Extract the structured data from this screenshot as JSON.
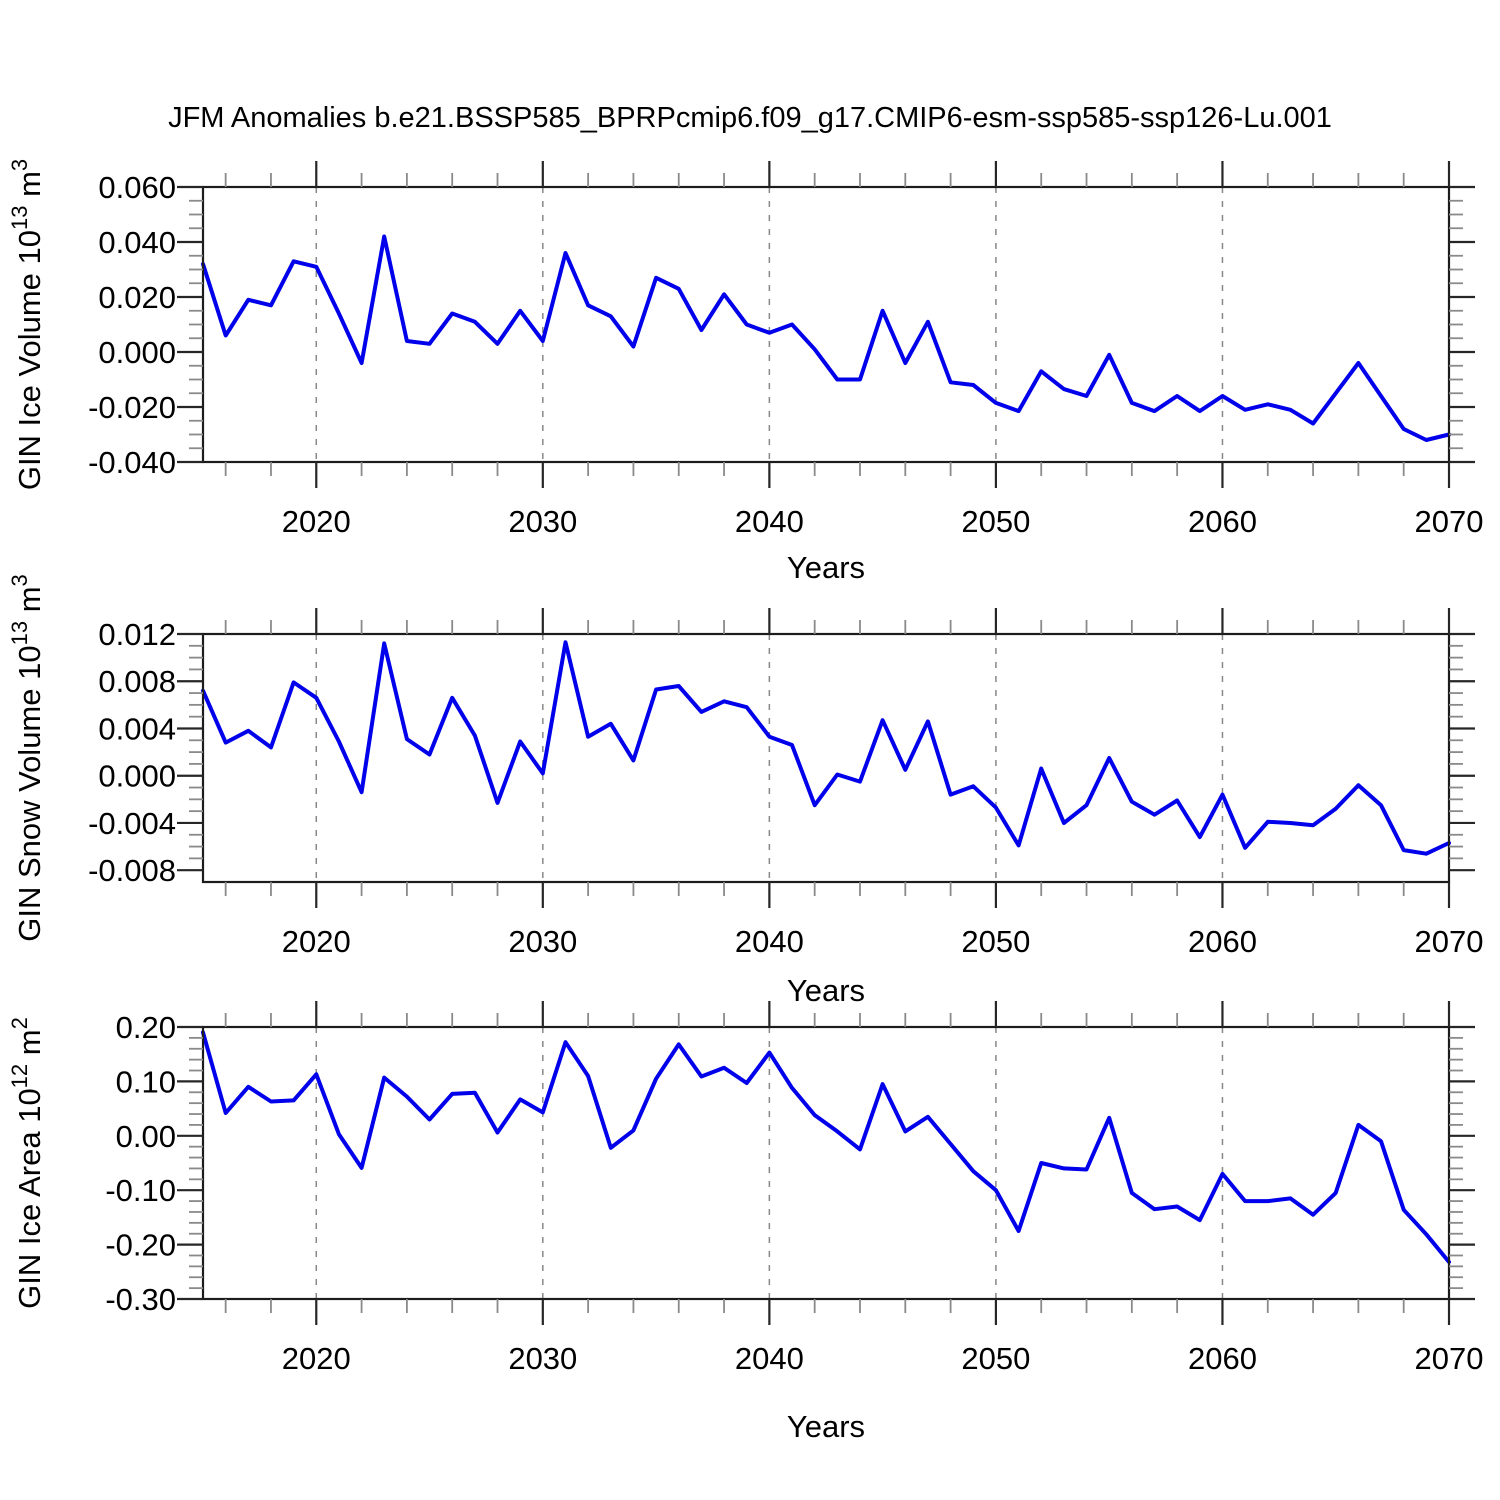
{
  "title": "JFM Anomalies b.e21.BSSP585_BPRPcmip6.f09_g17.CMIP6-esm-ssp585-ssp126-Lu.001",
  "styles": {
    "line_color": "#0000EB",
    "grid_color": "#888888",
    "axis_color": "#1c1c1c",
    "major_tick_color": "#262626",
    "minor_tick_color": "#8a8a8a",
    "background": "#ffffff",
    "text_color": "#000000"
  },
  "chart_data": [
    {
      "type": "line",
      "name": "gin-ice-volume",
      "ylabel_plain": "GIN Ice Volume 10^13 m^3",
      "ylabel_segments": [
        {
          "t": "GIN Ice Volume 10"
        },
        {
          "t": "13",
          "sup": true
        },
        {
          "t": " m"
        },
        {
          "t": "3",
          "sup": true
        }
      ],
      "xlabel": "Years",
      "ylim": [
        -0.04,
        0.06
      ],
      "ytick_labels": [
        "0.060",
        "0.040",
        "0.020",
        "0.000",
        "-0.020",
        "-0.040"
      ],
      "ytick_values": [
        0.06,
        0.04,
        0.02,
        0.0,
        -0.02,
        -0.04
      ],
      "y_minor_step": 0.005,
      "x": [
        2015,
        2016,
        2017,
        2018,
        2019,
        2020,
        2021,
        2022,
        2023,
        2024,
        2025,
        2026,
        2027,
        2028,
        2029,
        2030,
        2031,
        2032,
        2033,
        2034,
        2035,
        2036,
        2037,
        2038,
        2039,
        2040,
        2041,
        2042,
        2043,
        2044,
        2045,
        2046,
        2047,
        2048,
        2049,
        2050,
        2051,
        2052,
        2053,
        2054,
        2055,
        2056,
        2057,
        2058,
        2059,
        2060,
        2061,
        2062,
        2063,
        2064,
        2065,
        2066,
        2067,
        2068,
        2069,
        2070
      ],
      "values": [
        0.032,
        0.006,
        0.019,
        0.017,
        0.033,
        0.031,
        0.014,
        -0.004,
        0.042,
        0.004,
        0.003,
        0.014,
        0.011,
        0.003,
        0.015,
        0.004,
        0.036,
        0.017,
        0.013,
        0.002,
        0.027,
        0.023,
        0.008,
        0.021,
        0.01,
        0.007,
        0.01,
        0.001,
        -0.01,
        -0.01,
        0.015,
        -0.004,
        0.011,
        -0.011,
        -0.012,
        -0.0185,
        -0.0215,
        -0.007,
        -0.0135,
        -0.016,
        -0.001,
        -0.0185,
        -0.0215,
        -0.016,
        -0.0215,
        -0.016,
        -0.021,
        -0.019,
        -0.021,
        -0.026,
        -0.015,
        -0.004,
        -0.016,
        -0.028,
        -0.032,
        -0.03
      ]
    },
    {
      "type": "line",
      "name": "gin-snow-volume",
      "ylabel_plain": "GIN Snow Volume 10^13 m^3",
      "ylabel_segments": [
        {
          "t": "GIN Snow Volume 10"
        },
        {
          "t": "13",
          "sup": true
        },
        {
          "t": " m"
        },
        {
          "t": "3",
          "sup": true
        }
      ],
      "xlabel": "Years",
      "ylim": [
        -0.009,
        0.012
      ],
      "ytick_labels": [
        "0.012",
        "0.008",
        "0.004",
        "0.000",
        "-0.004",
        "-0.008"
      ],
      "ytick_values": [
        0.012,
        0.008,
        0.004,
        0.0,
        -0.004,
        -0.008
      ],
      "y_minor_step": 0.001,
      "x": [
        2015,
        2016,
        2017,
        2018,
        2019,
        2020,
        2021,
        2022,
        2023,
        2024,
        2025,
        2026,
        2027,
        2028,
        2029,
        2030,
        2031,
        2032,
        2033,
        2034,
        2035,
        2036,
        2037,
        2038,
        2039,
        2040,
        2041,
        2042,
        2043,
        2044,
        2045,
        2046,
        2047,
        2048,
        2049,
        2050,
        2051,
        2052,
        2053,
        2054,
        2055,
        2056,
        2057,
        2058,
        2059,
        2060,
        2061,
        2062,
        2063,
        2064,
        2065,
        2066,
        2067,
        2068,
        2069,
        2070
      ],
      "values": [
        0.0072,
        0.0028,
        0.0038,
        0.0024,
        0.0079,
        0.0066,
        0.0029,
        -0.0014,
        0.0112,
        0.0031,
        0.0018,
        0.0066,
        0.0034,
        -0.0023,
        0.0029,
        0.0002,
        0.0113,
        0.0033,
        0.0044,
        0.0013,
        0.0073,
        0.0076,
        0.0054,
        0.0063,
        0.0058,
        0.0033,
        0.0026,
        -0.0025,
        0.0001,
        -0.0005,
        0.0047,
        0.0005,
        0.0046,
        -0.0016,
        -0.0009,
        -0.0027,
        -0.0059,
        0.0006,
        -0.004,
        -0.0025,
        0.0015,
        -0.0022,
        -0.0033,
        -0.0021,
        -0.0052,
        -0.0016,
        -0.0061,
        -0.0039,
        -0.004,
        -0.0042,
        -0.0028,
        -0.0008,
        -0.0025,
        -0.0063,
        -0.0066,
        -0.0057
      ]
    },
    {
      "type": "line",
      "name": "gin-ice-area",
      "ylabel_plain": "GIN Ice Area 10^12 m^2",
      "ylabel_segments": [
        {
          "t": "GIN Ice Area 10"
        },
        {
          "t": "12",
          "sup": true
        },
        {
          "t": " m"
        },
        {
          "t": "2",
          "sup": true
        }
      ],
      "xlabel": "Years",
      "ylim": [
        -0.3,
        0.2
      ],
      "ytick_labels": [
        "0.20",
        "0.10",
        "0.00",
        "-0.10",
        "-0.20",
        "-0.30"
      ],
      "ytick_values": [
        0.2,
        0.1,
        0.0,
        -0.1,
        -0.2,
        -0.3
      ],
      "y_minor_step": 0.02,
      "x": [
        2015,
        2016,
        2017,
        2018,
        2019,
        2020,
        2021,
        2022,
        2023,
        2024,
        2025,
        2026,
        2027,
        2028,
        2029,
        2030,
        2031,
        2032,
        2033,
        2034,
        2035,
        2036,
        2037,
        2038,
        2039,
        2040,
        2041,
        2042,
        2043,
        2044,
        2045,
        2046,
        2047,
        2048,
        2049,
        2050,
        2051,
        2052,
        2053,
        2054,
        2055,
        2056,
        2057,
        2058,
        2059,
        2060,
        2061,
        2062,
        2063,
        2064,
        2065,
        2066,
        2067,
        2068,
        2069,
        2070
      ],
      "values": [
        0.19,
        0.042,
        0.09,
        0.063,
        0.065,
        0.113,
        0.003,
        -0.059,
        0.107,
        0.072,
        0.03,
        0.077,
        0.079,
        0.006,
        0.067,
        0.043,
        0.172,
        0.11,
        -0.022,
        0.01,
        0.105,
        0.168,
        0.109,
        0.125,
        0.097,
        0.153,
        0.088,
        0.038,
        0.008,
        -0.025,
        0.095,
        0.008,
        0.035,
        -0.015,
        -0.065,
        -0.1,
        -0.175,
        -0.05,
        -0.06,
        -0.062,
        0.033,
        -0.105,
        -0.135,
        -0.13,
        -0.155,
        -0.07,
        -0.12,
        -0.12,
        -0.115,
        -0.145,
        -0.105,
        0.02,
        -0.01,
        -0.136,
        -0.181,
        -0.232
      ]
    }
  ],
  "x_axis": {
    "xlim": [
      2015,
      2070
    ],
    "xtick_labels": [
      "2020",
      "2030",
      "2040",
      "2050",
      "2060",
      "2070"
    ],
    "xtick_values": [
      2020,
      2030,
      2040,
      2050,
      2060,
      2070
    ],
    "x_minor_step": 2,
    "grid_years": [
      2020,
      2030,
      2040,
      2050,
      2060
    ],
    "grid_style": "dashed",
    "xlabel": "Years"
  }
}
